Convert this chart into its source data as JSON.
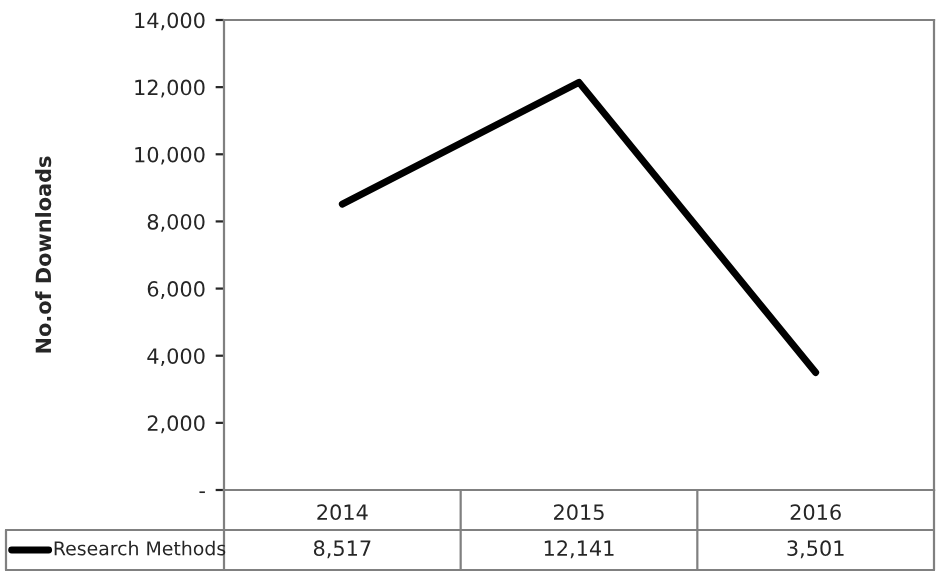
{
  "chart_data": {
    "type": "line",
    "ylabel": "No.of Downloads",
    "categories": [
      "2014",
      "2015",
      "2016"
    ],
    "series": [
      {
        "name": "Research Methods",
        "color": "#000000",
        "values": [
          8517,
          12141,
          3501
        ],
        "value_labels": [
          "8,517",
          "12,141",
          "3,501"
        ]
      }
    ],
    "ylim": [
      0,
      14000
    ],
    "yticks": [
      {
        "value": 0,
        "label": "-"
      },
      {
        "value": 2000,
        "label": "2,000"
      },
      {
        "value": 4000,
        "label": "4,000"
      },
      {
        "value": 6000,
        "label": "6,000"
      },
      {
        "value": 8000,
        "label": "8,000"
      },
      {
        "value": 10000,
        "label": "10,000"
      },
      {
        "value": 12000,
        "label": "12,000"
      },
      {
        "value": 14000,
        "label": "14,000"
      }
    ],
    "legend": "bottom",
    "grid": false,
    "marker": "none",
    "line_style": "solid"
  }
}
